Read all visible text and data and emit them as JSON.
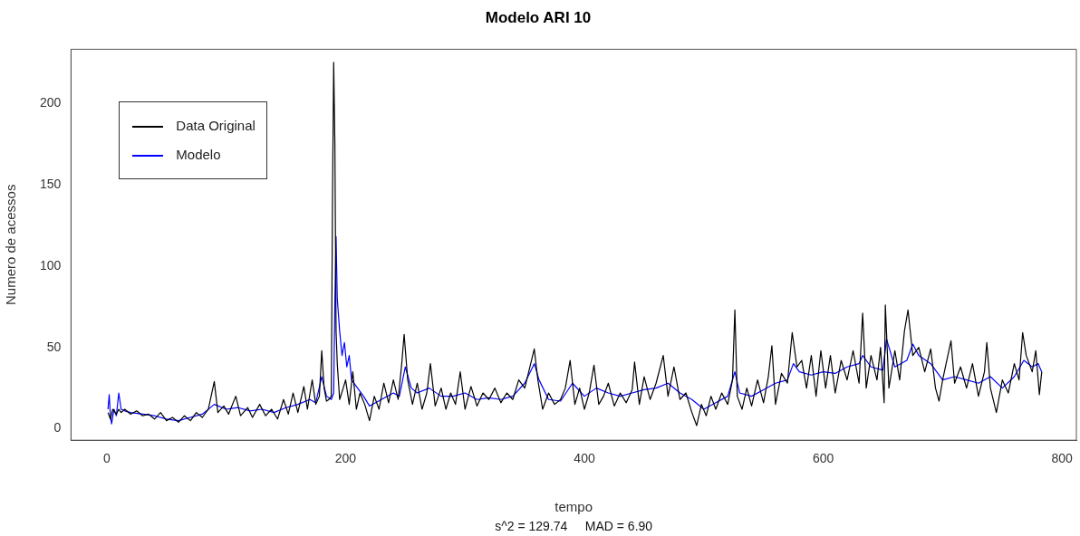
{
  "chart_data": {
    "type": "line",
    "title": "Modelo ARI 10",
    "xlabel": "tempo",
    "ylabel": "Numero de acessos",
    "annotations": [
      "s^2 = 129.74     MAD = 6.90"
    ],
    "xlim": [
      -30,
      812
    ],
    "xticks": [
      0,
      200,
      400,
      600,
      800
    ],
    "ylim": [
      -7,
      233
    ],
    "yticks": [
      0,
      50,
      100,
      150,
      200
    ],
    "grid": false,
    "legend": "top left",
    "marker": "none",
    "line_style": "solid",
    "series": [
      {
        "name": "Data Original",
        "color": "#000000",
        "x": [
          1,
          3,
          5,
          8,
          10,
          12,
          15,
          20,
          25,
          30,
          35,
          40,
          45,
          50,
          55,
          60,
          65,
          70,
          75,
          80,
          85,
          90,
          93,
          98,
          102,
          108,
          112,
          118,
          122,
          128,
          133,
          138,
          143,
          148,
          152,
          156,
          160,
          165,
          168,
          172,
          175,
          178,
          180,
          182,
          184,
          186,
          188,
          189,
          190,
          191,
          192,
          193,
          195,
          198,
          200,
          203,
          206,
          209,
          212,
          216,
          220,
          224,
          228,
          232,
          236,
          240,
          244,
          247,
          249,
          252,
          256,
          260,
          264,
          268,
          271,
          275,
          280,
          284,
          288,
          292,
          296,
          300,
          305,
          310,
          315,
          320,
          325,
          330,
          335,
          340,
          345,
          350,
          355,
          358,
          361,
          365,
          370,
          375,
          380,
          384,
          388,
          392,
          396,
          400,
          404,
          408,
          412,
          416,
          420,
          425,
          430,
          435,
          440,
          442,
          446,
          450,
          455,
          460,
          466,
          470,
          475,
          480,
          485,
          490,
          494,
          498,
          502,
          506,
          510,
          515,
          520,
          524,
          526,
          528,
          532,
          536,
          540,
          545,
          550,
          554,
          557,
          560,
          565,
          570,
          574,
          578,
          582,
          586,
          590,
          594,
          598,
          602,
          606,
          610,
          615,
          620,
          625,
          630,
          633,
          636,
          640,
          645,
          648,
          651,
          652,
          655,
          660,
          664,
          668,
          671,
          675,
          680,
          685,
          690,
          694,
          697,
          700,
          707,
          710,
          715,
          720,
          725,
          730,
          735,
          737,
          740,
          745,
          750,
          755,
          760,
          764,
          767,
          770,
          775,
          778,
          781,
          783
        ],
        "values": [
          10,
          6,
          12,
          9,
          12,
          10,
          12,
          9,
          11,
          8,
          9,
          6,
          10,
          5,
          7,
          4,
          8,
          5,
          10,
          7,
          12,
          29,
          10,
          14,
          9,
          20,
          8,
          13,
          7,
          15,
          8,
          12,
          6,
          18,
          9,
          22,
          10,
          26,
          12,
          30,
          15,
          20,
          48,
          25,
          17,
          18,
          20,
          140,
          225,
          175,
          60,
          40,
          18,
          25,
          30,
          15,
          35,
          12,
          22,
          15,
          5,
          20,
          12,
          28,
          16,
          30,
          18,
          40,
          58,
          30,
          15,
          28,
          12,
          22,
          40,
          14,
          25,
          12,
          22,
          15,
          35,
          12,
          26,
          14,
          22,
          18,
          25,
          16,
          22,
          18,
          30,
          25,
          40,
          49,
          30,
          12,
          22,
          15,
          18,
          25,
          42,
          15,
          25,
          12,
          22,
          39,
          15,
          20,
          28,
          14,
          22,
          16,
          24,
          41,
          15,
          32,
          18,
          28,
          45,
          20,
          38,
          18,
          22,
          10,
          2,
          15,
          8,
          20,
          12,
          22,
          15,
          30,
          73,
          20,
          12,
          25,
          14,
          30,
          16,
          32,
          51,
          15,
          34,
          28,
          59,
          38,
          42,
          25,
          45,
          20,
          48,
          25,
          45,
          22,
          42,
          30,
          48,
          28,
          71,
          25,
          45,
          30,
          50,
          16,
          76,
          25,
          48,
          30,
          60,
          73,
          45,
          50,
          35,
          49,
          25,
          17,
          30,
          54,
          28,
          38,
          25,
          40,
          20,
          35,
          53,
          25,
          10,
          30,
          22,
          40,
          30,
          59,
          45,
          35,
          48,
          21,
          35
        ]
      },
      {
        "name": "Modelo",
        "color": "#0000ff",
        "x": [
          1,
          2,
          3,
          4,
          6,
          8,
          10,
          12,
          15,
          20,
          30,
          40,
          50,
          60,
          70,
          80,
          90,
          100,
          110,
          120,
          130,
          140,
          150,
          160,
          170,
          175,
          180,
          184,
          188,
          190,
          191,
          192,
          193,
          195,
          197,
          199,
          201,
          203,
          205,
          210,
          215,
          220,
          230,
          240,
          245,
          250,
          255,
          260,
          270,
          280,
          290,
          300,
          310,
          320,
          330,
          340,
          350,
          358,
          362,
          370,
          380,
          390,
          400,
          410,
          420,
          430,
          440,
          450,
          460,
          470,
          480,
          490,
          500,
          510,
          520,
          526,
          530,
          540,
          550,
          560,
          570,
          575,
          580,
          590,
          600,
          610,
          620,
          630,
          633,
          640,
          650,
          653,
          660,
          670,
          675,
          680,
          690,
          700,
          710,
          720,
          730,
          740,
          750,
          760,
          768,
          775,
          780,
          783
        ],
        "values": [
          12,
          21,
          8,
          3,
          12,
          8,
          22,
          12,
          11,
          10,
          9,
          8,
          6,
          5,
          7,
          9,
          15,
          12,
          13,
          11,
          12,
          10,
          13,
          15,
          18,
          16,
          32,
          20,
          18,
          22,
          78,
          118,
          80,
          60,
          45,
          53,
          38,
          45,
          30,
          25,
          20,
          14,
          18,
          22,
          20,
          38,
          25,
          22,
          25,
          20,
          20,
          22,
          18,
          19,
          18,
          20,
          28,
          40,
          30,
          18,
          17,
          28,
          20,
          25,
          22,
          20,
          22,
          24,
          25,
          28,
          22,
          18,
          12,
          16,
          20,
          35,
          22,
          20,
          24,
          28,
          30,
          40,
          35,
          33,
          35,
          34,
          38,
          40,
          45,
          38,
          36,
          55,
          38,
          42,
          52,
          45,
          40,
          30,
          32,
          30,
          28,
          32,
          25,
          32,
          42,
          38,
          40,
          35
        ]
      }
    ]
  }
}
